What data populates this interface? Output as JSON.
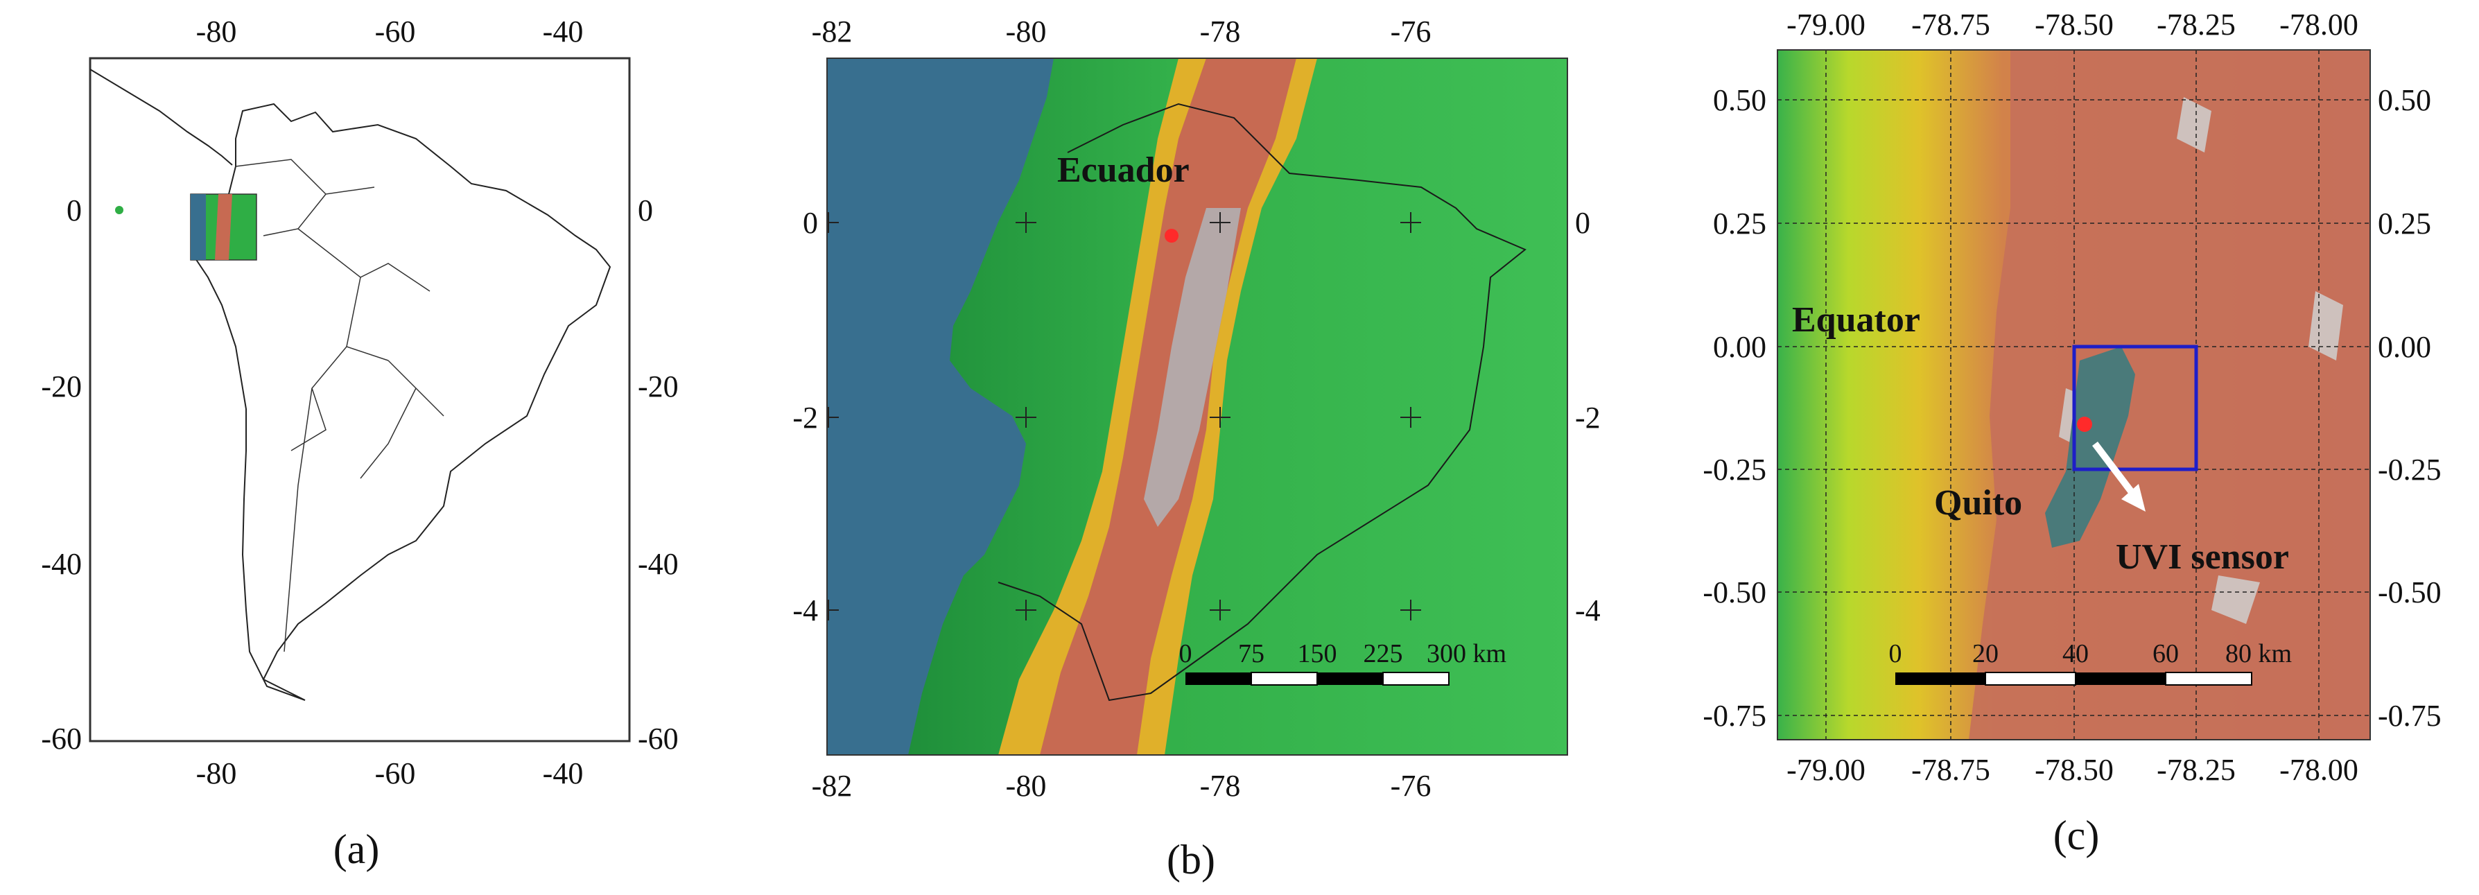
{
  "panel_a": {
    "caption": "(a)",
    "x_ticks": [
      "-80",
      "-60",
      "-40"
    ],
    "y_ticks": [
      "0",
      "-20",
      "-40",
      "-60"
    ]
  },
  "panel_b": {
    "caption": "(b)",
    "x_ticks": [
      "-82",
      "-80",
      "-78",
      "-76"
    ],
    "y_ticks": [
      "0",
      "-2",
      "-4"
    ],
    "label_country": "Ecuador",
    "scalebar_labels": [
      "0",
      "75",
      "150",
      "225",
      "300 km"
    ]
  },
  "panel_c": {
    "caption": "(c)",
    "x_ticks": [
      "-79.00",
      "-78.75",
      "-78.50",
      "-78.25",
      "-78.00"
    ],
    "y_ticks": [
      "0.50",
      "0.25",
      "0.00",
      "-0.25",
      "-0.50",
      "-0.75"
    ],
    "label_equator": "Equator",
    "label_city": "Quito",
    "label_sensor": "UVI sensor",
    "scalebar_labels": [
      "0",
      "20",
      "40",
      "60",
      "80 km"
    ]
  },
  "colors": {
    "ocean": "#386f8f",
    "lowland": "#2fae45",
    "foothill": "#cfe12a",
    "mid": "#e09a2a",
    "highland": "#c76a52",
    "peak": "#c8c8c8",
    "marker": "#ff2a2a",
    "box": "#1e1ec8"
  }
}
